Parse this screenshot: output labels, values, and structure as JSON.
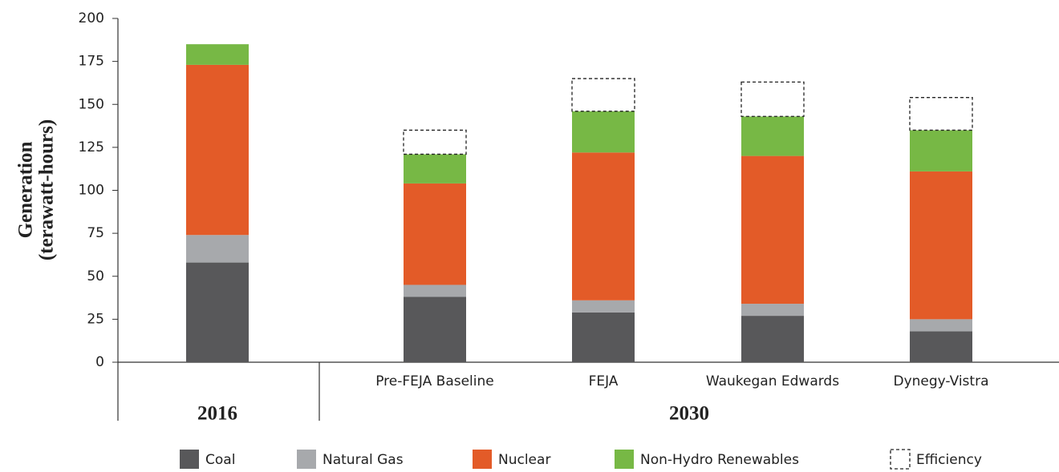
{
  "chart_data": {
    "type": "stacked_bar",
    "y_label": [
      "Generation",
      "(terawatt-hours)"
    ],
    "categories": [
      null,
      "Pre-FEJA Baseline",
      "FEJA",
      "Waukegan Edwards",
      "Dynegy-Vistra"
    ],
    "groups": [
      "2016",
      "2030"
    ],
    "series": [
      {
        "name": "Coal",
        "color": "#58585a",
        "values": [
          58,
          38,
          29,
          27,
          18
        ]
      },
      {
        "name": "Natural Gas",
        "color": "#a7a9ac",
        "values": [
          16,
          7,
          7,
          7,
          7
        ]
      },
      {
        "name": "Nuclear",
        "color": "#e35b28",
        "values": [
          99,
          59,
          86,
          86,
          86
        ]
      },
      {
        "name": "Non-Hydro Renewables",
        "color": "#77b845",
        "values": [
          12,
          17,
          24,
          23,
          24
        ]
      },
      {
        "name": "Efficiency",
        "color": "#ffffff",
        "outline": "dashed",
        "values": [
          null,
          14,
          19,
          20,
          19
        ]
      }
    ],
    "ylim": [
      0,
      200
    ],
    "yticks": [
      0,
      25,
      50,
      75,
      100,
      125,
      150,
      175,
      200
    ],
    "grid": false
  }
}
